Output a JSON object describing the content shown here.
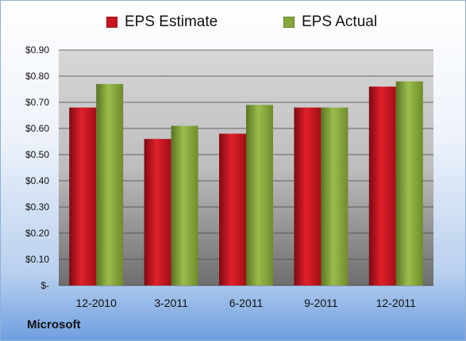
{
  "chart_data": {
    "type": "bar",
    "title": "",
    "xlabel": "",
    "ylabel": "",
    "categories": [
      "12-2010",
      "3-2011",
      "6-2011",
      "9-2011",
      "12-2011"
    ],
    "series": [
      {
        "name": "EPS Estimate",
        "color": "#c8141e",
        "values": [
          0.68,
          0.56,
          0.58,
          0.68,
          0.76
        ]
      },
      {
        "name": "EPS Actual",
        "color": "#86a83a",
        "values": [
          0.77,
          0.61,
          0.69,
          0.68,
          0.78
        ]
      }
    ],
    "ylim": [
      0,
      0.9
    ],
    "yticks": [
      0,
      0.1,
      0.2,
      0.3,
      0.4,
      0.5,
      0.6,
      0.7,
      0.8,
      0.9
    ],
    "ytick_labels": [
      "$-",
      "$0.10",
      "$0.20",
      "$0.30",
      "$0.40",
      "$0.50",
      "$0.60",
      "$0.70",
      "$0.80",
      "$0.90"
    ],
    "grid": true,
    "legend_position": "top"
  },
  "footer": {
    "company": "Microsoft"
  }
}
